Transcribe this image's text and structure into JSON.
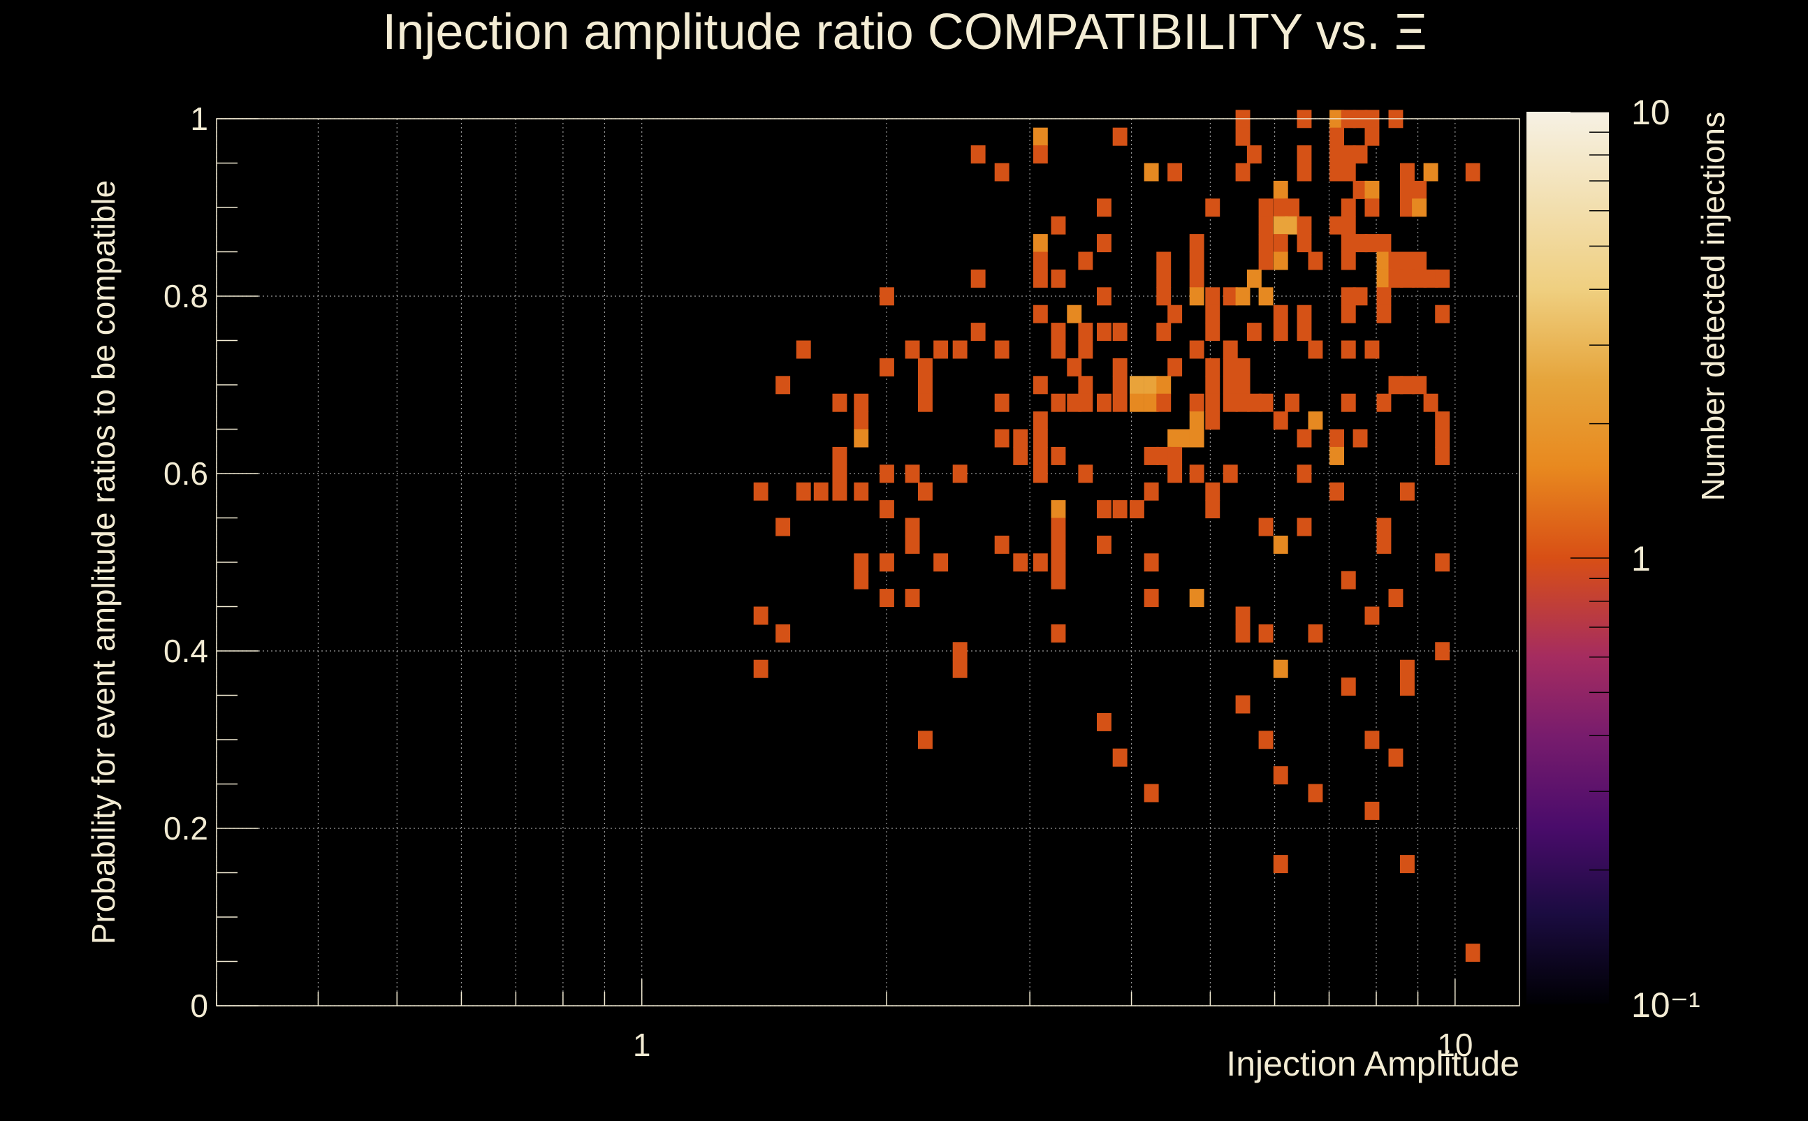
{
  "chart_data": {
    "type": "heatmap",
    "title": "Injection amplitude ratio COMPATIBILITY vs.  Ξ",
    "xlabel": "Injection Amplitude",
    "ylabel": "Probability for event amplitude ratios to be compatible",
    "x_scale": "log",
    "xlim": [
      0.3,
      12
    ],
    "ylim": [
      0,
      1
    ],
    "x_tick_labels": [
      {
        "value": 1,
        "label": "1"
      },
      {
        "value": 10,
        "label": "10"
      }
    ],
    "y_tick_labels": [
      {
        "value": 0,
        "label": "0"
      },
      {
        "value": 0.2,
        "label": "0.2"
      },
      {
        "value": 0.4,
        "label": "0.4"
      },
      {
        "value": 0.6,
        "label": "0.6"
      },
      {
        "value": 0.8,
        "label": "0.8"
      },
      {
        "value": 1,
        "label": "1"
      }
    ],
    "grid": true,
    "colorbar": {
      "label": "Number detected injections",
      "scale": "log",
      "range": [
        0.1,
        10
      ],
      "tick_labels": [
        {
          "value": 10,
          "label": "10"
        },
        {
          "value": 1,
          "label": "1"
        },
        {
          "value": 0.1,
          "label": "10⁻¹"
        }
      ],
      "gradient_stops": [
        {
          "value": 0.1,
          "color": "#000004"
        },
        {
          "value": 0.16,
          "color": "#1b0c41"
        },
        {
          "value": 0.25,
          "color": "#4a0c6b"
        },
        {
          "value": 0.4,
          "color": "#781c6d"
        },
        {
          "value": 0.6,
          "color": "#a52c60"
        },
        {
          "value": 1.0,
          "color": "#d84f15"
        },
        {
          "value": 1.6,
          "color": "#e8891f"
        },
        {
          "value": 2.5,
          "color": "#e6a53c"
        },
        {
          "value": 4.0,
          "color": "#efcf80"
        },
        {
          "value": 10,
          "color": "#f6f1e4"
        }
      ]
    },
    "bin_color_scale": {
      "1": "#d55216",
      "2": "#e68921",
      "3": "#e9a33a"
    },
    "bins": [
      [
        5.48,
        1.0,
        1
      ],
      [
        6.52,
        1.0,
        1
      ],
      [
        7.15,
        1.0,
        2
      ],
      [
        7.39,
        1.0,
        1
      ],
      [
        7.64,
        1.0,
        1
      ],
      [
        7.9,
        1.0,
        1
      ],
      [
        8.45,
        1.0,
        1
      ],
      [
        7.15,
        0.98,
        1
      ],
      [
        7.9,
        0.98,
        1
      ],
      [
        5.48,
        0.98,
        1
      ],
      [
        3.87,
        0.98,
        1
      ],
      [
        3.09,
        0.98,
        2
      ],
      [
        7.15,
        0.96,
        1
      ],
      [
        7.39,
        0.96,
        1
      ],
      [
        7.64,
        0.96,
        1
      ],
      [
        6.52,
        0.96,
        1
      ],
      [
        2.59,
        0.96,
        1
      ],
      [
        3.09,
        0.96,
        1
      ],
      [
        5.66,
        0.96,
        1
      ],
      [
        7.15,
        0.94,
        1
      ],
      [
        7.39,
        0.94,
        1
      ],
      [
        2.77,
        0.94,
        1
      ],
      [
        4.23,
        0.94,
        2
      ],
      [
        4.52,
        0.94,
        1
      ],
      [
        5.48,
        0.94,
        1
      ],
      [
        6.52,
        0.94,
        1
      ],
      [
        8.73,
        0.94,
        1
      ],
      [
        9.33,
        0.94,
        2
      ],
      [
        10.51,
        0.94,
        1
      ],
      [
        7.64,
        0.92,
        1
      ],
      [
        8.73,
        0.92,
        1
      ],
      [
        9.03,
        0.92,
        1
      ],
      [
        6.1,
        0.92,
        2
      ],
      [
        7.9,
        0.92,
        2
      ],
      [
        3.7,
        0.9,
        1
      ],
      [
        5.03,
        0.9,
        1
      ],
      [
        5.85,
        0.9,
        1
      ],
      [
        6.1,
        0.9,
        1
      ],
      [
        6.3,
        0.9,
        1
      ],
      [
        7.39,
        0.9,
        1
      ],
      [
        7.9,
        0.9,
        1
      ],
      [
        8.73,
        0.9,
        1
      ],
      [
        9.03,
        0.9,
        2
      ],
      [
        3.25,
        0.88,
        1
      ],
      [
        5.85,
        0.88,
        1
      ],
      [
        6.1,
        0.88,
        3
      ],
      [
        6.3,
        0.88,
        3
      ],
      [
        6.52,
        0.88,
        1
      ],
      [
        7.15,
        0.88,
        1
      ],
      [
        7.39,
        0.88,
        1
      ],
      [
        3.09,
        0.86,
        2
      ],
      [
        3.7,
        0.86,
        1
      ],
      [
        4.81,
        0.86,
        1
      ],
      [
        5.85,
        0.86,
        1
      ],
      [
        6.1,
        0.86,
        1
      ],
      [
        6.52,
        0.86,
        1
      ],
      [
        7.39,
        0.86,
        1
      ],
      [
        7.64,
        0.86,
        1
      ],
      [
        7.9,
        0.86,
        1
      ],
      [
        8.17,
        0.86,
        1
      ],
      [
        3.09,
        0.84,
        1
      ],
      [
        3.51,
        0.84,
        1
      ],
      [
        4.38,
        0.84,
        1
      ],
      [
        4.81,
        0.84,
        1
      ],
      [
        5.85,
        0.84,
        1
      ],
      [
        6.1,
        0.84,
        2
      ],
      [
        6.73,
        0.84,
        1
      ],
      [
        7.39,
        0.84,
        1
      ],
      [
        8.17,
        0.84,
        2
      ],
      [
        8.45,
        0.84,
        1
      ],
      [
        8.73,
        0.84,
        1
      ],
      [
        9.03,
        0.84,
        1
      ],
      [
        2.59,
        0.82,
        1
      ],
      [
        3.09,
        0.82,
        1
      ],
      [
        3.25,
        0.82,
        1
      ],
      [
        4.38,
        0.82,
        1
      ],
      [
        4.81,
        0.82,
        1
      ],
      [
        5.66,
        0.82,
        2
      ],
      [
        8.17,
        0.82,
        2
      ],
      [
        8.45,
        0.82,
        1
      ],
      [
        8.73,
        0.82,
        1
      ],
      [
        9.03,
        0.82,
        1
      ],
      [
        9.33,
        0.82,
        1
      ],
      [
        9.64,
        0.82,
        1
      ],
      [
        2.0,
        0.8,
        1
      ],
      [
        3.7,
        0.8,
        1
      ],
      [
        4.38,
        0.8,
        1
      ],
      [
        4.81,
        0.8,
        2
      ],
      [
        5.03,
        0.8,
        1
      ],
      [
        5.29,
        0.8,
        1
      ],
      [
        5.48,
        0.8,
        2
      ],
      [
        5.85,
        0.8,
        2
      ],
      [
        7.39,
        0.8,
        1
      ],
      [
        7.64,
        0.8,
        1
      ],
      [
        8.17,
        0.8,
        1
      ],
      [
        3.09,
        0.78,
        1
      ],
      [
        3.4,
        0.78,
        2
      ],
      [
        4.52,
        0.78,
        1
      ],
      [
        5.03,
        0.78,
        1
      ],
      [
        6.1,
        0.78,
        1
      ],
      [
        6.52,
        0.78,
        1
      ],
      [
        7.39,
        0.78,
        1
      ],
      [
        8.17,
        0.78,
        1
      ],
      [
        9.64,
        0.78,
        1
      ],
      [
        2.59,
        0.76,
        1
      ],
      [
        3.25,
        0.76,
        1
      ],
      [
        3.51,
        0.76,
        1
      ],
      [
        3.7,
        0.76,
        1
      ],
      [
        3.87,
        0.76,
        1
      ],
      [
        4.38,
        0.76,
        1
      ],
      [
        5.03,
        0.76,
        1
      ],
      [
        5.66,
        0.76,
        1
      ],
      [
        6.1,
        0.76,
        1
      ],
      [
        6.52,
        0.76,
        1
      ],
      [
        1.58,
        0.74,
        1
      ],
      [
        2.15,
        0.74,
        1
      ],
      [
        2.33,
        0.74,
        1
      ],
      [
        2.46,
        0.74,
        1
      ],
      [
        2.77,
        0.74,
        1
      ],
      [
        3.25,
        0.74,
        1
      ],
      [
        3.51,
        0.74,
        1
      ],
      [
        4.81,
        0.74,
        1
      ],
      [
        5.29,
        0.74,
        1
      ],
      [
        6.73,
        0.74,
        1
      ],
      [
        7.39,
        0.74,
        1
      ],
      [
        7.9,
        0.74,
        1
      ],
      [
        2.0,
        0.72,
        1
      ],
      [
        2.23,
        0.72,
        1
      ],
      [
        3.4,
        0.72,
        1
      ],
      [
        3.87,
        0.72,
        1
      ],
      [
        4.52,
        0.72,
        1
      ],
      [
        5.03,
        0.72,
        1
      ],
      [
        5.29,
        0.72,
        1
      ],
      [
        5.48,
        0.72,
        1
      ],
      [
        1.49,
        0.7,
        1
      ],
      [
        2.23,
        0.7,
        1
      ],
      [
        3.09,
        0.7,
        1
      ],
      [
        3.51,
        0.7,
        1
      ],
      [
        3.87,
        0.7,
        1
      ],
      [
        4.06,
        0.7,
        3
      ],
      [
        4.23,
        0.7,
        3
      ],
      [
        4.38,
        0.7,
        2
      ],
      [
        5.03,
        0.7,
        1
      ],
      [
        5.29,
        0.7,
        1
      ],
      [
        5.48,
        0.7,
        1
      ],
      [
        8.45,
        0.7,
        1
      ],
      [
        8.73,
        0.7,
        1
      ],
      [
        9.03,
        0.7,
        1
      ],
      [
        1.75,
        0.68,
        1
      ],
      [
        1.86,
        0.68,
        1
      ],
      [
        2.23,
        0.68,
        1
      ],
      [
        2.77,
        0.68,
        1
      ],
      [
        3.25,
        0.68,
        1
      ],
      [
        3.4,
        0.68,
        1
      ],
      [
        3.51,
        0.68,
        1
      ],
      [
        3.7,
        0.68,
        1
      ],
      [
        3.87,
        0.68,
        1
      ],
      [
        4.06,
        0.68,
        2
      ],
      [
        4.23,
        0.68,
        2
      ],
      [
        4.38,
        0.68,
        1
      ],
      [
        4.81,
        0.68,
        1
      ],
      [
        5.03,
        0.68,
        1
      ],
      [
        5.29,
        0.68,
        1
      ],
      [
        5.48,
        0.68,
        1
      ],
      [
        5.66,
        0.68,
        1
      ],
      [
        5.85,
        0.68,
        1
      ],
      [
        6.3,
        0.68,
        1
      ],
      [
        7.39,
        0.68,
        1
      ],
      [
        8.17,
        0.68,
        1
      ],
      [
        9.33,
        0.68,
        1
      ],
      [
        1.86,
        0.66,
        1
      ],
      [
        3.09,
        0.66,
        1
      ],
      [
        4.81,
        0.66,
        2
      ],
      [
        5.03,
        0.66,
        1
      ],
      [
        6.1,
        0.66,
        1
      ],
      [
        6.73,
        0.66,
        2
      ],
      [
        9.64,
        0.66,
        1
      ],
      [
        1.86,
        0.64,
        2
      ],
      [
        2.77,
        0.64,
        1
      ],
      [
        2.92,
        0.64,
        1
      ],
      [
        3.09,
        0.64,
        1
      ],
      [
        4.52,
        0.64,
        2
      ],
      [
        4.67,
        0.64,
        2
      ],
      [
        4.81,
        0.64,
        2
      ],
      [
        6.52,
        0.64,
        1
      ],
      [
        7.15,
        0.64,
        1
      ],
      [
        7.64,
        0.64,
        1
      ],
      [
        9.64,
        0.64,
        1
      ],
      [
        1.75,
        0.62,
        1
      ],
      [
        2.92,
        0.62,
        1
      ],
      [
        3.09,
        0.62,
        1
      ],
      [
        3.25,
        0.62,
        1
      ],
      [
        4.23,
        0.62,
        1
      ],
      [
        4.38,
        0.62,
        1
      ],
      [
        4.52,
        0.62,
        1
      ],
      [
        7.15,
        0.62,
        2
      ],
      [
        9.64,
        0.62,
        1
      ],
      [
        1.75,
        0.6,
        1
      ],
      [
        2.0,
        0.6,
        1
      ],
      [
        2.15,
        0.6,
        1
      ],
      [
        2.46,
        0.6,
        1
      ],
      [
        3.09,
        0.6,
        1
      ],
      [
        3.51,
        0.6,
        1
      ],
      [
        4.52,
        0.6,
        1
      ],
      [
        4.81,
        0.6,
        1
      ],
      [
        5.29,
        0.6,
        1
      ],
      [
        6.52,
        0.6,
        1
      ],
      [
        1.4,
        0.58,
        1
      ],
      [
        1.58,
        0.58,
        1
      ],
      [
        1.66,
        0.58,
        1
      ],
      [
        1.75,
        0.58,
        1
      ],
      [
        1.86,
        0.58,
        1
      ],
      [
        2.23,
        0.58,
        1
      ],
      [
        4.23,
        0.58,
        1
      ],
      [
        5.03,
        0.58,
        1
      ],
      [
        7.15,
        0.58,
        1
      ],
      [
        8.73,
        0.58,
        1
      ],
      [
        2.0,
        0.56,
        1
      ],
      [
        3.25,
        0.56,
        2
      ],
      [
        3.7,
        0.56,
        1
      ],
      [
        3.87,
        0.56,
        1
      ],
      [
        4.06,
        0.56,
        1
      ],
      [
        5.03,
        0.56,
        1
      ],
      [
        1.49,
        0.54,
        1
      ],
      [
        2.15,
        0.54,
        1
      ],
      [
        3.25,
        0.54,
        1
      ],
      [
        5.85,
        0.54,
        1
      ],
      [
        6.52,
        0.54,
        1
      ],
      [
        8.17,
        0.54,
        1
      ],
      [
        2.15,
        0.52,
        1
      ],
      [
        2.77,
        0.52,
        1
      ],
      [
        3.25,
        0.52,
        1
      ],
      [
        3.7,
        0.52,
        1
      ],
      [
        6.1,
        0.52,
        2
      ],
      [
        8.17,
        0.52,
        1
      ],
      [
        1.86,
        0.5,
        1
      ],
      [
        2.0,
        0.5,
        1
      ],
      [
        2.33,
        0.5,
        1
      ],
      [
        2.92,
        0.5,
        1
      ],
      [
        3.09,
        0.5,
        1
      ],
      [
        3.25,
        0.5,
        1
      ],
      [
        4.23,
        0.5,
        1
      ],
      [
        9.64,
        0.5,
        1
      ],
      [
        1.86,
        0.48,
        1
      ],
      [
        3.25,
        0.48,
        1
      ],
      [
        7.39,
        0.48,
        1
      ],
      [
        2.0,
        0.46,
        1
      ],
      [
        2.15,
        0.46,
        1
      ],
      [
        4.23,
        0.46,
        1
      ],
      [
        4.81,
        0.46,
        2
      ],
      [
        8.45,
        0.46,
        1
      ],
      [
        1.4,
        0.44,
        1
      ],
      [
        5.48,
        0.44,
        1
      ],
      [
        7.9,
        0.44,
        1
      ],
      [
        1.49,
        0.42,
        1
      ],
      [
        3.25,
        0.42,
        1
      ],
      [
        5.48,
        0.42,
        1
      ],
      [
        5.85,
        0.42,
        1
      ],
      [
        6.73,
        0.42,
        1
      ],
      [
        2.46,
        0.4,
        1
      ],
      [
        9.64,
        0.4,
        1
      ],
      [
        1.4,
        0.38,
        1
      ],
      [
        2.46,
        0.38,
        1
      ],
      [
        6.1,
        0.38,
        2
      ],
      [
        8.73,
        0.38,
        1
      ],
      [
        7.39,
        0.36,
        1
      ],
      [
        8.73,
        0.36,
        1
      ],
      [
        5.48,
        0.34,
        1
      ],
      [
        3.7,
        0.32,
        1
      ],
      [
        2.23,
        0.3,
        1
      ],
      [
        5.85,
        0.3,
        1
      ],
      [
        7.9,
        0.3,
        1
      ],
      [
        3.87,
        0.28,
        1
      ],
      [
        8.45,
        0.28,
        1
      ],
      [
        6.1,
        0.26,
        1
      ],
      [
        4.23,
        0.24,
        1
      ],
      [
        6.73,
        0.24,
        1
      ],
      [
        7.9,
        0.22,
        1
      ],
      [
        6.1,
        0.16,
        1
      ],
      [
        8.73,
        0.16,
        1
      ],
      [
        10.51,
        0.06,
        1
      ]
    ]
  }
}
